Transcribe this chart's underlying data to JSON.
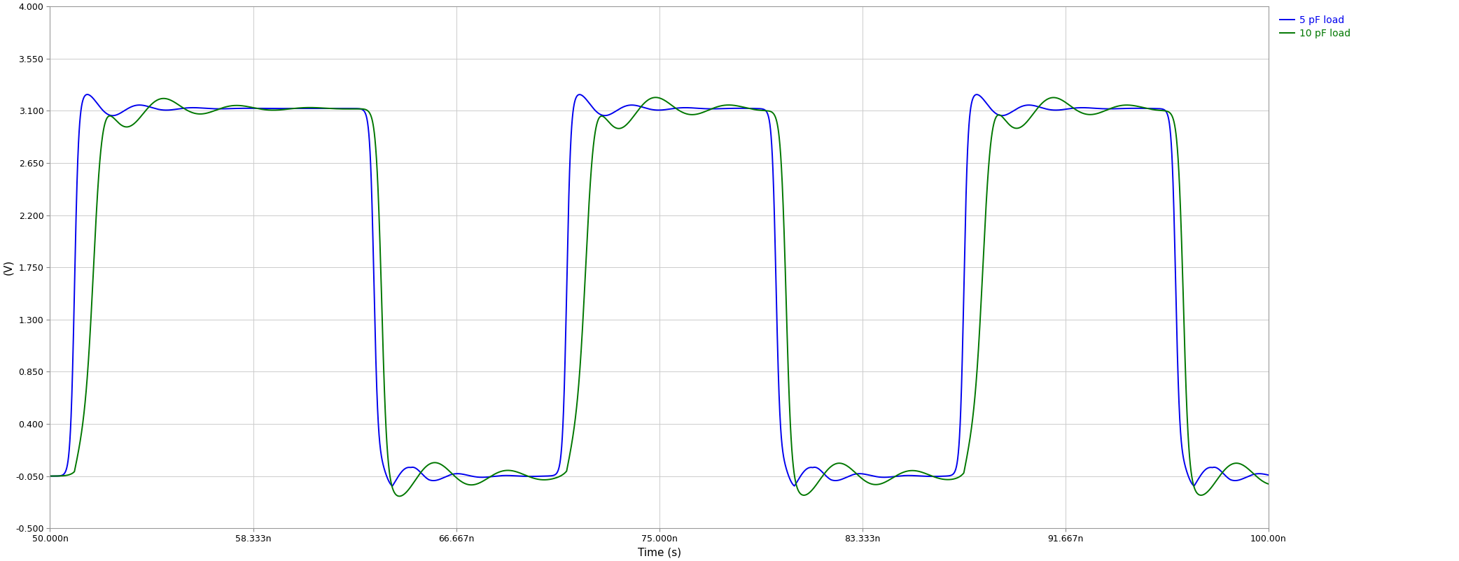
{
  "xlabel": "Time (s)",
  "ylabel": "(V)",
  "xlim": [
    5e-08,
    1e-07
  ],
  "ylim": [
    -0.5,
    4.0
  ],
  "yticks": [
    4.0,
    3.55,
    3.1,
    2.65,
    2.2,
    1.75,
    1.3,
    0.85,
    0.4,
    -0.05,
    -0.5
  ],
  "xtick_labels": [
    "50.000n",
    "58.333n",
    "66.667n",
    "75.000n",
    "83.333n",
    "91.667n",
    "100.00n"
  ],
  "xtick_values": [
    5e-08,
    5.8333e-08,
    6.6667e-08,
    7.5e-08,
    8.3333e-08,
    9.1667e-08,
    1e-07
  ],
  "bg_color": "#ffffff",
  "plot_bg_color": "#ffffff",
  "grid_color": "#cccccc",
  "blue_color": "#0000ee",
  "green_color": "#007700",
  "legend_blue": "5 pF load",
  "legend_green": "10 pF load",
  "linewidth": 1.4,
  "fig_width": 20.84,
  "fig_height": 8.02,
  "dpi": 100
}
